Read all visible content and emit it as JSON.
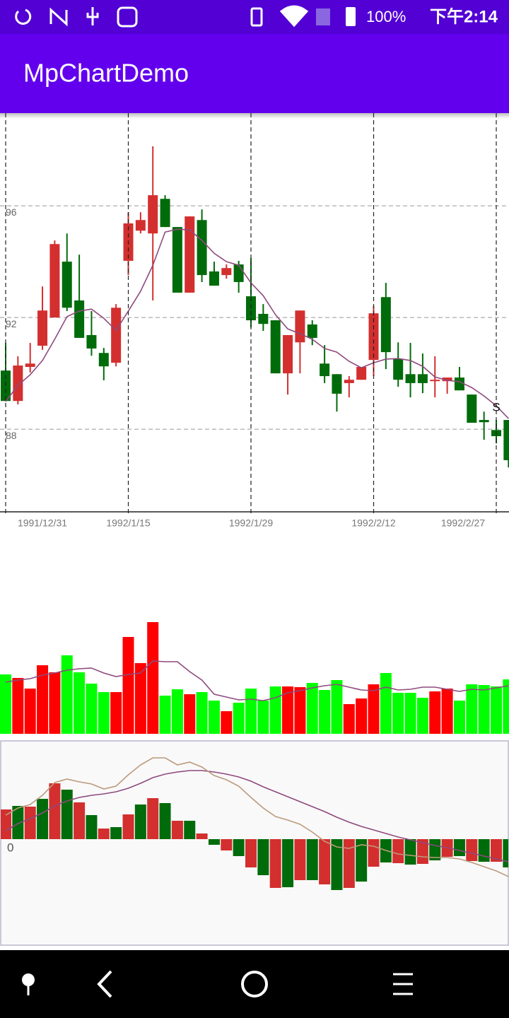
{
  "status_bar": {
    "battery": "100%",
    "time": "下午2:14"
  },
  "app_bar": {
    "title": "MpChartDemo"
  },
  "chart_data": [
    {
      "type": "candlestick",
      "categories": [
        "1991/12/31",
        null,
        null,
        null,
        null,
        null,
        null,
        null,
        null,
        null,
        "1992/1/15",
        null,
        null,
        null,
        null,
        null,
        null,
        null,
        null,
        null,
        "1992/1/29",
        null,
        null,
        null,
        null,
        null,
        null,
        null,
        null,
        null,
        "1992/2/12",
        null,
        null,
        null,
        null,
        null,
        null,
        null,
        null,
        null,
        "1992/2/27",
        null
      ],
      "open": [
        90.1,
        89.01,
        90.23,
        90.99,
        92.0,
        94.0,
        92.61,
        91.37,
        90.73,
        90.38,
        94.03,
        95.11,
        95.01,
        96.25,
        95.24,
        92.89,
        95.49,
        93.65,
        93.52,
        93.9,
        92.76,
        92.13,
        91.9,
        90.0,
        91.11,
        91.75,
        90.35,
        89.97,
        89.65,
        89.77,
        90.48,
        92.73,
        90.51,
        89.97,
        89.97,
        89.72,
        89.72,
        89.85,
        89.24,
        88.33,
        87.97,
        88.33
      ],
      "high": [
        91.09,
        90.61,
        91.09,
        93.11,
        94.76,
        95.01,
        94.25,
        92.23,
        90.91,
        92.48,
        95.77,
        95.77,
        98.13,
        96.38,
        95.24,
        95.62,
        95.87,
        94.0,
        93.9,
        94.03,
        94.13,
        92.48,
        91.9,
        91.37,
        92.25,
        91.9,
        91.01,
        89.97,
        89.9,
        90.23,
        92.41,
        93.24,
        91.11,
        91.09,
        90.71,
        90.61,
        89.85,
        90.23,
        89.24,
        88.63,
        88.33,
        88.33
      ],
      "low": [
        89.01,
        88.89,
        90.03,
        90.84,
        92.0,
        92.23,
        91.27,
        90.63,
        89.75,
        90.25,
        93.52,
        95.01,
        92.61,
        95.24,
        92.89,
        92.89,
        93.27,
        93.14,
        93.39,
        92.89,
        91.65,
        91.52,
        90.0,
        89.24,
        90.0,
        91.01,
        89.65,
        88.63,
        89.14,
        89.77,
        89.9,
        90.15,
        89.52,
        89.14,
        89.29,
        89.14,
        89.27,
        89.39,
        88.23,
        87.62,
        87.49,
        86.63
      ],
      "close": [
        89.01,
        90.28,
        90.35,
        92.25,
        94.63,
        92.35,
        91.27,
        90.89,
        90.25,
        92.35,
        95.37,
        95.49,
        96.38,
        95.24,
        92.89,
        95.62,
        93.52,
        93.14,
        93.77,
        93.27,
        91.9,
        91.77,
        90.0,
        91.37,
        92.25,
        91.27,
        89.9,
        89.27,
        89.77,
        90.23,
        92.15,
        90.76,
        89.77,
        89.65,
        89.65,
        89.77,
        89.85,
        89.39,
        88.23,
        88.25,
        87.75,
        86.89
      ],
      "increasing_color": "#d32f2f",
      "decreasing_color": "#006b0a",
      "ma": {
        "color": "#8e4a7e",
        "values": [
          88.99,
          89.57,
          89.95,
          90.46,
          91.22,
          92.03,
          92.23,
          92.3,
          91.97,
          91.54,
          92.23,
          92.94,
          93.87,
          95.06,
          95.16,
          95.14,
          94.76,
          94.3,
          94.0,
          93.87,
          93.24,
          92.78,
          92.1,
          91.59,
          91.42,
          91.22,
          90.89,
          90.76,
          90.43,
          90.2,
          90.38,
          90.51,
          90.53,
          90.46,
          90.25,
          89.87,
          89.75,
          89.7,
          89.49,
          89.19,
          88.84,
          88.38
        ]
      },
      "annotation": "S",
      "ylim": [
        85.04,
        99.32
      ],
      "yticks": [
        88,
        92,
        96
      ],
      "grid": true
    },
    {
      "type": "bar",
      "values": [
        84,
        79,
        64,
        97,
        87,
        111,
        87,
        71,
        59,
        59,
        137,
        100,
        158,
        54,
        63,
        56,
        59,
        47,
        32,
        44,
        64,
        47,
        67,
        67,
        66,
        72,
        62,
        76,
        42,
        50,
        70,
        86,
        58,
        58,
        51,
        60,
        64,
        47,
        70,
        69,
        67,
        77
      ],
      "colors": [
        "#00ff00",
        "#ff0000",
        "#ff0000",
        "#ff0000",
        "#ff0000",
        "#00ff00",
        "#00ff00",
        "#00ff00",
        "#00ff00",
        "#ff0000",
        "#ff0000",
        "#ff0000",
        "#ff0000",
        "#00ff00",
        "#00ff00",
        "#ff0000",
        "#00ff00",
        "#00ff00",
        "#ff0000",
        "#00ff00",
        "#00ff00",
        "#00ff00",
        "#00ff00",
        "#ff0000",
        "#ff0000",
        "#00ff00",
        "#00ff00",
        "#00ff00",
        "#ff0000",
        "#ff0000",
        "#ff0000",
        "#00ff00",
        "#00ff00",
        "#00ff00",
        "#00ff00",
        "#ff0000",
        "#ff0000",
        "#00ff00",
        "#00ff00",
        "#00ff00",
        "#00ff00",
        "#00ff00"
      ],
      "ma": {
        "color": "#8e4a7e",
        "values": [
          73,
          76,
          78,
          83,
          86,
          90,
          92,
          93,
          86,
          81,
          84,
          86,
          103,
          102,
          102,
          88,
          76,
          56,
          52,
          48,
          49,
          47,
          51,
          58,
          61,
          65,
          68,
          70,
          66,
          62,
          61,
          66,
          62,
          63,
          66,
          66,
          63,
          60,
          63,
          62,
          65,
          68
        ]
      },
      "ylim": [
        0,
        200
      ]
    },
    {
      "type": "macd",
      "histogram": {
        "values": [
          0.42,
          0.47,
          0.46,
          0.57,
          0.79,
          0.7,
          0.52,
          0.34,
          0.15,
          0.17,
          0.35,
          0.49,
          0.58,
          0.51,
          0.26,
          0.26,
          0.08,
          -0.08,
          -0.16,
          -0.24,
          -0.4,
          -0.51,
          -0.69,
          -0.68,
          -0.58,
          -0.58,
          -0.64,
          -0.72,
          -0.69,
          -0.6,
          -0.39,
          -0.33,
          -0.34,
          -0.36,
          -0.35,
          -0.3,
          -0.25,
          -0.24,
          -0.31,
          -0.32,
          -0.32,
          -0.4
        ],
        "colors": [
          "#d32f2f",
          "#006b0a",
          "#d32f2f",
          "#006b0a",
          "#d32f2f",
          "#006b0a",
          "#d32f2f",
          "#006b0a",
          "#d32f2f",
          "#006b0a",
          "#d32f2f",
          "#006b0a",
          "#d32f2f",
          "#006b0a",
          "#d32f2f",
          "#006b0a",
          "#d32f2f",
          "#006b0a",
          "#d32f2f",
          "#006b0a",
          "#d32f2f",
          "#006b0a",
          "#d32f2f",
          "#006b0a",
          "#d32f2f",
          "#006b0a",
          "#d32f2f",
          "#006b0a",
          "#d32f2f",
          "#006b0a",
          "#d32f2f",
          "#006b0a",
          "#d32f2f",
          "#006b0a",
          "#d32f2f",
          "#006b0a",
          "#d32f2f",
          "#006b0a",
          "#d32f2f",
          "#006b0a",
          "#d32f2f",
          "#006b0a"
        ]
      },
      "lines": [
        {
          "color": "#8e4a7e",
          "values": [
            0.12,
            0.22,
            0.29,
            0.37,
            0.47,
            0.54,
            0.59,
            0.62,
            0.64,
            0.67,
            0.72,
            0.79,
            0.87,
            0.92,
            0.95,
            0.97,
            0.97,
            0.95,
            0.92,
            0.88,
            0.82,
            0.74,
            0.67,
            0.6,
            0.53,
            0.46,
            0.39,
            0.31,
            0.24,
            0.18,
            0.13,
            0.08,
            0.03,
            -0.01,
            -0.05,
            -0.09,
            -0.12,
            -0.16,
            -0.2,
            -0.24,
            -0.28,
            -0.32
          ]
        },
        {
          "color": "#bc9a7c",
          "values": [
            0.34,
            0.44,
            0.49,
            0.62,
            0.8,
            0.85,
            0.81,
            0.78,
            0.71,
            0.75,
            0.91,
            1.05,
            1.15,
            1.15,
            1.05,
            1.09,
            1.02,
            0.9,
            0.84,
            0.75,
            0.59,
            0.44,
            0.32,
            0.27,
            0.21,
            0.1,
            -0.03,
            -0.11,
            -0.13,
            -0.08,
            -0.1,
            -0.16,
            -0.21,
            -0.23,
            -0.25,
            -0.26,
            -0.26,
            -0.28,
            -0.33,
            -0.39,
            -0.45,
            -0.53
          ]
        }
      ],
      "ylim": [
        -1.5,
        1.39
      ],
      "yticks": [
        0
      ]
    }
  ]
}
